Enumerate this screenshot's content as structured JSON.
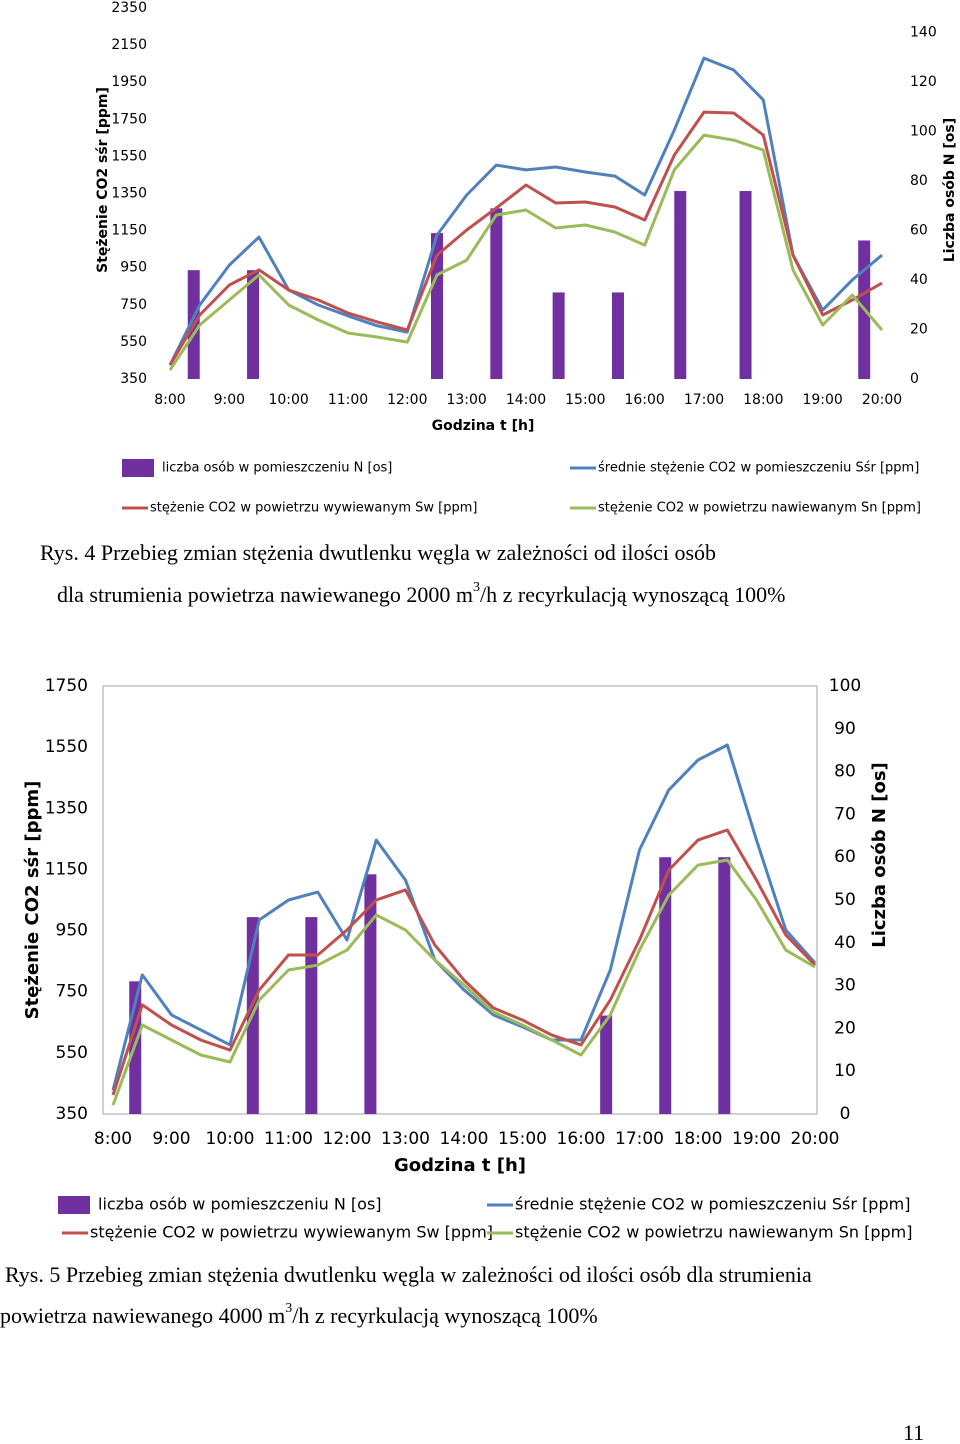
{
  "chart_data": [
    {
      "type": "bar-line",
      "x_label": "Godzina t [h]",
      "y_label": "Stężenie CO2 sśr [ppm]",
      "y2_label": "Liczba osób N [os]",
      "xlim": [
        8,
        20
      ],
      "xticks": [
        {
          "value": 8,
          "label": "8:00"
        },
        {
          "value": 9,
          "label": "9:00"
        },
        {
          "value": 10,
          "label": "10:00"
        },
        {
          "value": 11,
          "label": "11:00"
        },
        {
          "value": 12,
          "label": "12:00"
        },
        {
          "value": 13,
          "label": "13:00"
        },
        {
          "value": 14,
          "label": "14:00"
        },
        {
          "value": 15,
          "label": "15:00"
        },
        {
          "value": 16,
          "label": "16:00"
        },
        {
          "value": 17,
          "label": "17:00"
        },
        {
          "value": 18,
          "label": "18:00"
        },
        {
          "value": 19,
          "label": "19:00"
        },
        {
          "value": 20,
          "label": "20:00"
        }
      ],
      "ylim": [
        350,
        2350
      ],
      "yticks": [
        350,
        550,
        750,
        950,
        1150,
        1350,
        1550,
        1750,
        1950,
        2150,
        2350
      ],
      "y2lim": [
        0,
        150
      ],
      "y2ticks": [
        0,
        20,
        40,
        60,
        80,
        100,
        120,
        140
      ],
      "x": [
        8,
        8.5,
        9,
        9.5,
        10,
        10.5,
        11,
        11.5,
        12,
        12.5,
        13,
        13.5,
        14,
        14.5,
        15,
        15.5,
        16,
        16.5,
        17,
        17.5,
        18,
        18.5,
        19,
        19.5,
        20
      ],
      "series": [
        {
          "name": "liczba osób w pomieszczeniu N [os]",
          "color": "#7030a0",
          "type": "bar",
          "axis": "y2",
          "x": [
            8.4,
            9.4,
            12.5,
            13.5,
            14.55,
            15.55,
            16.6,
            17.7,
            19.7
          ],
          "values": [
            44,
            44,
            59,
            69,
            35,
            35,
            76,
            76,
            56
          ]
        },
        {
          "name": "średnie stężenie CO2 w pomieszczeniu Sśr [ppm]",
          "color": "#4f81bd",
          "type": "line",
          "values": [
            425,
            749,
            964,
            1115,
            830,
            749,
            690,
            636,
            603,
            1126,
            1342,
            1503,
            1477,
            1493,
            1466,
            1444,
            1342,
            1692,
            2080,
            2016,
            1854,
            1018,
            722,
            884,
            1018
          ]
        },
        {
          "name": "stężenie CO2 w powietrzu wywiewanym Sw [ppm]",
          "color": "#c0504d",
          "type": "line",
          "values": [
            425,
            695,
            857,
            938,
            830,
            776,
            706,
            657,
            614,
            1018,
            1153,
            1272,
            1396,
            1299,
            1304,
            1277,
            1207,
            1557,
            1789,
            1784,
            1665,
            1018,
            695,
            776,
            867
          ]
        },
        {
          "name": "stężenie CO2 w powietrzu nawiewanym Sn [ppm]",
          "color": "#9bbb59",
          "type": "line",
          "values": [
            398,
            641,
            776,
            911,
            749,
            668,
            598,
            576,
            549,
            911,
            991,
            1234,
            1261,
            1164,
            1180,
            1142,
            1072,
            1477,
            1665,
            1638,
            1584,
            938,
            641,
            803,
            614
          ]
        }
      ]
    },
    {
      "type": "bar-line",
      "x_label": "Godzina t [h]",
      "y_label": "Stężenie CO2 sśr [ppm]",
      "y2_label": "Liczba osób N [os]",
      "xlim": [
        8,
        20
      ],
      "xticks": [
        {
          "value": 8,
          "label": "8:00"
        },
        {
          "value": 9,
          "label": "9:00"
        },
        {
          "value": 10,
          "label": "10:00"
        },
        {
          "value": 11,
          "label": "11:00"
        },
        {
          "value": 12,
          "label": "12:00"
        },
        {
          "value": 13,
          "label": "13:00"
        },
        {
          "value": 14,
          "label": "14:00"
        },
        {
          "value": 15,
          "label": "15:00"
        },
        {
          "value": 16,
          "label": "16:00"
        },
        {
          "value": 17,
          "label": "17:00"
        },
        {
          "value": 18,
          "label": "18:00"
        },
        {
          "value": 19,
          "label": "19:00"
        },
        {
          "value": 20,
          "label": "20:00"
        }
      ],
      "ylim": [
        350,
        1750
      ],
      "yticks": [
        350,
        550,
        750,
        950,
        1150,
        1350,
        1550,
        1750
      ],
      "y2lim": [
        0,
        100
      ],
      "y2ticks": [
        0,
        10,
        20,
        30,
        40,
        50,
        60,
        70,
        80,
        90,
        100
      ],
      "x": [
        8,
        8.5,
        9,
        9.5,
        10,
        10.5,
        11,
        11.5,
        12,
        12.5,
        13,
        13.5,
        14,
        14.5,
        15,
        15.5,
        16,
        16.5,
        17,
        17.5,
        18,
        18.5,
        19,
        19.5,
        20
      ],
      "series": [
        {
          "name": "liczba osób w pomieszczeniu N [os]",
          "color": "#7030a0",
          "type": "bar",
          "axis": "y2",
          "x": [
            8.38,
            10.39,
            11.39,
            12.4,
            16.43,
            17.44,
            18.45
          ],
          "values": [
            31,
            46,
            46,
            56,
            23,
            60,
            60
          ]
        },
        {
          "name": "średnie stężenie CO2 w pomieszczeniu Sśr [ppm]",
          "color": "#4f81bd",
          "type": "line",
          "values": [
            428,
            805,
            674,
            625,
            576,
            985,
            1050,
            1076,
            919,
            1246,
            1115,
            854,
            756,
            674,
            635,
            592,
            592,
            821,
            1214,
            1410,
            1508,
            1557,
            1246,
            952,
            844
          ]
        },
        {
          "name": "stężenie CO2 w powietrzu wywiewanym Sw [ppm]",
          "color": "#c0504d",
          "type": "line",
          "values": [
            412,
            707,
            641,
            592,
            559,
            756,
            870,
            870,
            952,
            1050,
            1083,
            903,
            788,
            697,
            657,
            608,
            576,
            723,
            919,
            1148,
            1246,
            1279,
            1115,
            936,
            837
          ]
        },
        {
          "name": "stężenie CO2 w powietrzu nawiewanym Sn [ppm]",
          "color": "#9bbb59",
          "type": "line",
          "values": [
            379,
            641,
            592,
            543,
            520,
            723,
            821,
            837,
            886,
            1001,
            952,
            854,
            772,
            684,
            641,
            592,
            543,
            674,
            886,
            1066,
            1164,
            1181,
            1050,
            886,
            831
          ]
        }
      ]
    }
  ],
  "captions": [
    {
      "line1": "Rys. 4  Przebieg zmian stężenia dwutlenku węgla w zależności od ilości osób",
      "line2": "dla strumienia powietrza nawiewanego 2000 m",
      "sup": "3",
      "line2_end": "/h z recyrkulacją wynoszącą 100%"
    },
    {
      "line1": "Rys. 5  Przebieg zmian stężenia dwutlenku węgla w zależności od ilości osób dla strumienia",
      "line2": "powietrza nawiewanego 4000 m",
      "sup": "3",
      "line2_end": "/h z recyrkulacją wynoszącą 100%"
    }
  ],
  "page_number": "11"
}
